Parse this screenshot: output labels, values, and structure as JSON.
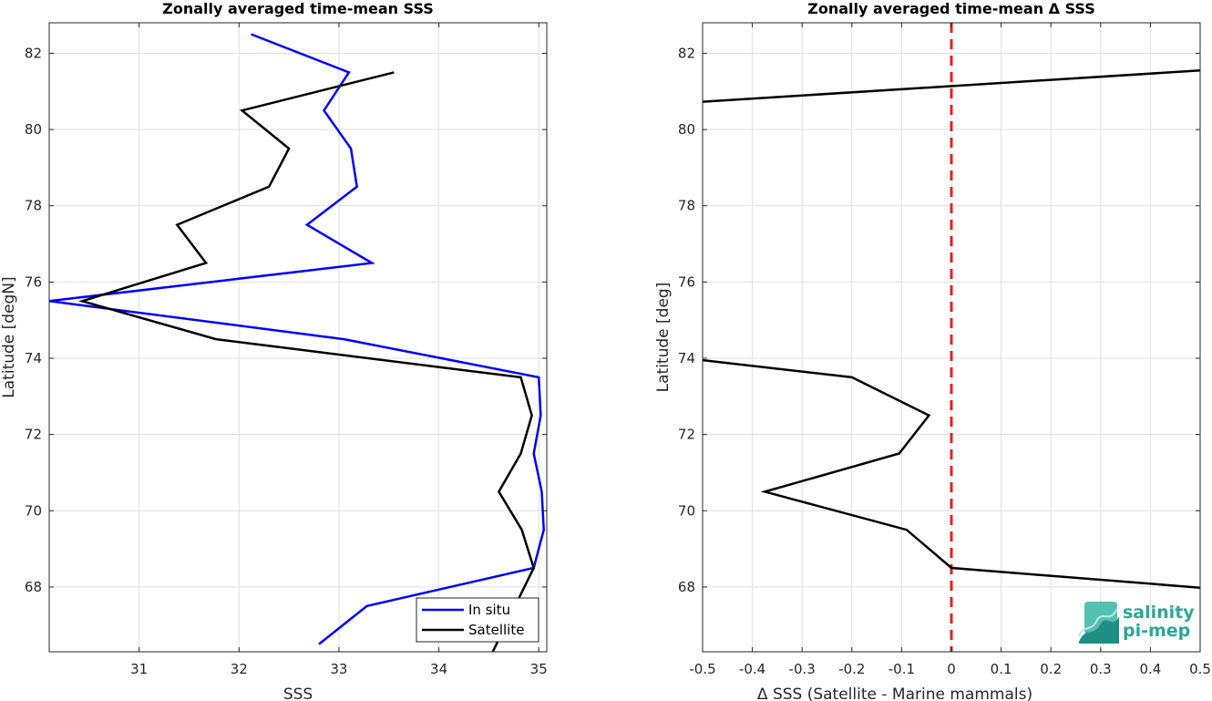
{
  "chart_data": [
    {
      "type": "line",
      "title": "Zonally averaged time-mean SSS",
      "xlabel": "SSS",
      "ylabel": "Latitude [degN]",
      "xlim": [
        30.1,
        35.08
      ],
      "ylim": [
        66.3,
        82.8
      ],
      "xticks": [
        31,
        32,
        33,
        34,
        35
      ],
      "yticks": [
        68,
        70,
        72,
        74,
        76,
        78,
        80,
        82
      ],
      "grid": true,
      "legend_position": "bottom-right",
      "series": [
        {
          "name": "In situ",
          "color": "#0000ff",
          "x": [
            32.12,
            33.1,
            32.85,
            33.12,
            33.18,
            32.68,
            33.33,
            30.1,
            33.05,
            35.0,
            35.02,
            34.95,
            35.03,
            35.05,
            34.95,
            33.28,
            32.8
          ],
          "y": [
            82.5,
            81.5,
            80.5,
            79.5,
            78.5,
            77.5,
            76.5,
            75.5,
            74.5,
            73.5,
            72.5,
            71.5,
            70.5,
            69.5,
            68.5,
            67.5,
            66.5
          ]
        },
        {
          "name": "Satellite",
          "color": "#000000",
          "x": [
            33.55,
            32.03,
            32.5,
            32.3,
            31.38,
            31.67,
            30.43,
            31.77,
            34.82,
            34.93,
            34.82,
            34.6,
            34.83,
            34.95,
            34.52
          ],
          "y": [
            81.5,
            80.5,
            79.5,
            78.5,
            77.5,
            76.5,
            75.5,
            74.5,
            73.5,
            72.5,
            71.5,
            70.5,
            69.5,
            68.5,
            66.2
          ]
        }
      ]
    },
    {
      "type": "line",
      "title": "Zonally averaged time-mean Δ SSS",
      "xlabel": "Δ SSS (Satellite - Marine mammals)",
      "ylabel": "Latitude [deg]",
      "xlim": [
        -0.5,
        0.5
      ],
      "ylim": [
        66.3,
        82.8
      ],
      "xticks": [
        -0.5,
        -0.4,
        -0.3,
        -0.2,
        -0.1,
        0,
        0.1,
        0.2,
        0.3,
        0.4,
        0.5
      ],
      "xtick_labels": [
        "-0.5",
        "-0.4",
        "-0.3",
        "-0.2",
        "-0.1",
        "0",
        "0.1",
        "0.2",
        "0.3",
        "0.4",
        "0.5"
      ],
      "yticks": [
        68,
        70,
        72,
        74,
        76,
        78,
        80,
        82
      ],
      "grid": true,
      "reference_line": {
        "x": 0,
        "color": "#e8201c",
        "style": "dashed"
      },
      "series": [
        {
          "color": "#000000",
          "x": [
            -0.5,
            0.5
          ],
          "y": [
            80.73,
            81.55
          ]
        },
        {
          "color": "#000000",
          "x": [
            -0.5,
            -0.2,
            -0.045,
            -0.105,
            -0.375,
            -0.09,
            0.0,
            0.5
          ],
          "y": [
            73.95,
            73.5,
            72.5,
            71.5,
            70.5,
            69.5,
            68.5,
            67.98
          ]
        }
      ]
    }
  ],
  "logo": {
    "line1": "salinity",
    "line2": "pi-mep",
    "color": "#2aa89a"
  }
}
